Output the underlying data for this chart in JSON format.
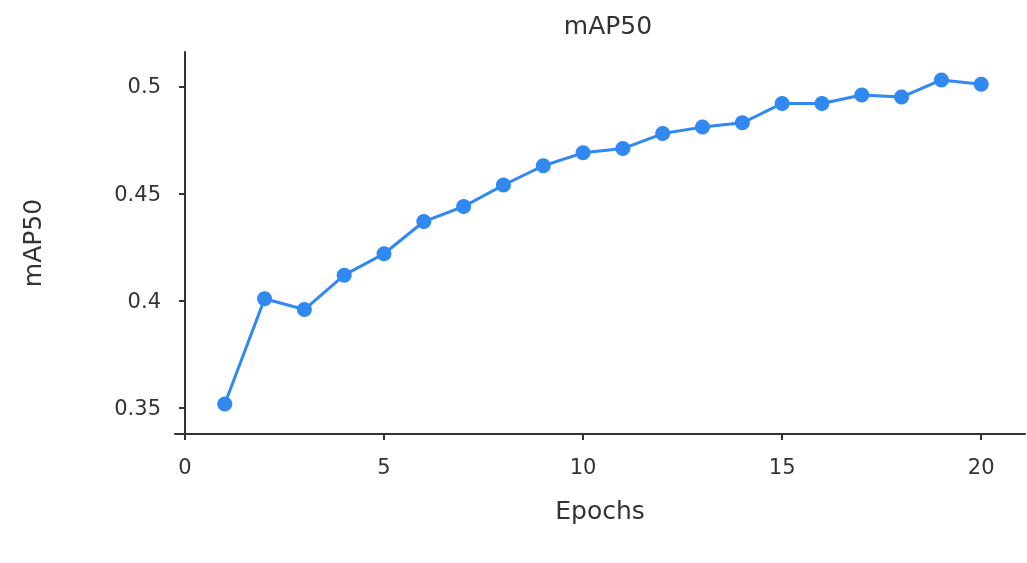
{
  "chart_data": {
    "type": "line",
    "title": "mAP50",
    "xlabel": "Epochs",
    "ylabel": "mAP50",
    "x": [
      1,
      2,
      3,
      4,
      5,
      6,
      7,
      8,
      9,
      10,
      11,
      12,
      13,
      14,
      15,
      16,
      17,
      18,
      19,
      20
    ],
    "series": [
      {
        "color": "#3088f0",
        "values": [
          0.352,
          0.401,
          0.396,
          0.412,
          0.422,
          0.437,
          0.444,
          0.454,
          0.463,
          0.469,
          0.471,
          0.478,
          0.481,
          0.483,
          0.492,
          0.492,
          0.496,
          0.495,
          0.503,
          0.501
        ]
      }
    ],
    "xlim": [
      -0.25,
      21.1
    ],
    "xticks": [
      0,
      5,
      10,
      15,
      20
    ],
    "ylim": [
      0.338,
      0.516
    ],
    "yticks": [
      0.35,
      0.4,
      0.45,
      0.5
    ],
    "grid": false,
    "marker": "circle",
    "line_style": "solid"
  }
}
